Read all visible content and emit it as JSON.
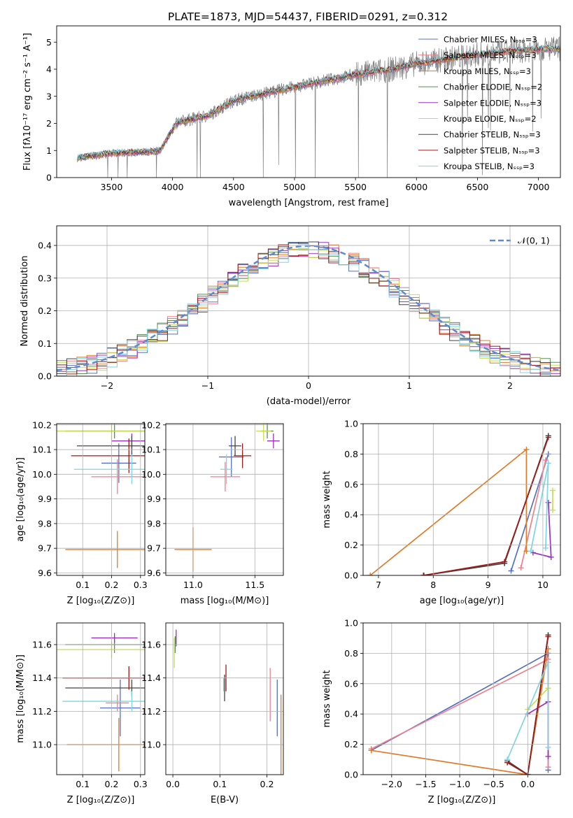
{
  "title": "PLATE=1873, MJD=54437, FIBERID=0291, z=0.312",
  "model_colors": [
    "#5470c6",
    "#f07e8e",
    "#e07b2a",
    "#5b8c5a",
    "#9b30c0",
    "#c8dc54",
    "#444444",
    "#a01818",
    "#7fd6e0"
  ],
  "chart_data": [
    {
      "id": "spectrum",
      "type": "line",
      "xlabel": "wavelength [Angstrom, rest frame]",
      "ylabel": "Flux [fλ10⁻¹⁷ erg cm⁻² s⁻¹ A⁻¹]",
      "xlim": [
        3050,
        7180
      ],
      "ylim": [
        0,
        5.6
      ],
      "xticks": [
        "3500",
        "4000",
        "4500",
        "5000",
        "5500",
        "6000",
        "6500",
        "7000"
      ],
      "yticks": [
        "0",
        "1",
        "2",
        "3",
        "4",
        "5"
      ],
      "legend_position": "upper-right",
      "series": [
        {
          "name": "Chabrier MILES, Nₛₛₚ=3"
        },
        {
          "name": "Salpeter MILES, Nₛₛₚ=3"
        },
        {
          "name": "Kroupa MILES, Nₛₛₚ=3"
        },
        {
          "name": "Chabrier ELODIE, Nₛₛₚ=2"
        },
        {
          "name": "Salpeter ELODIE, Nₛₛₚ=3"
        },
        {
          "name": "Kroupa ELODIE, Nₛₛₚ=2"
        },
        {
          "name": "Chabrier STELIB, Nₛₛₚ=3"
        },
        {
          "name": "Salpeter STELIB, Nₛₛₚ=3"
        },
        {
          "name": "Kroupa STELIB, Nₛₛₚ=3"
        }
      ],
      "continuum": {
        "x": [
          3220,
          3500,
          3800,
          3900,
          4000,
          4050,
          4300,
          4500,
          4700,
          5000,
          5500,
          5800,
          6000,
          6500,
          7000
        ],
        "y": [
          0.72,
          0.9,
          0.95,
          1.0,
          1.8,
          2.05,
          2.3,
          2.85,
          3.05,
          3.35,
          3.8,
          4.0,
          4.2,
          4.55,
          4.75
        ]
      },
      "data_start": 3220,
      "data_end": 7180,
      "grid": false
    },
    {
      "id": "residuals",
      "type": "histogram",
      "xlabel": "(data-model)/error",
      "ylabel": "Normed distribution",
      "xlim": [
        -2.5,
        2.5
      ],
      "ylim": [
        0,
        0.46
      ],
      "xticks": [
        "−2",
        "−1",
        "0",
        "1",
        "2"
      ],
      "yticks": [
        "0.0",
        "0.1",
        "0.2",
        "0.3",
        "0.4"
      ],
      "reference_curve": "𝒩(0, 1)",
      "legend_position": "upper-right",
      "grid": true
    },
    {
      "id": "age-vs-Z",
      "type": "scatter",
      "xlabel": "Z [log₁₀(Z/Z⊙)]",
      "ylabel": "age  [log₁₀(age/yr)]",
      "xlim": [
        0.01,
        0.315
      ],
      "ylim": [
        9.59,
        10.205
      ],
      "xticks": [
        "0.1",
        "0.2",
        "0.3"
      ],
      "yticks": [
        "9.6",
        "9.7",
        "9.8",
        "9.9",
        "10.0",
        "10.1",
        "10.2"
      ],
      "points": [
        {
          "c": 0,
          "x": 0.225,
          "xerr": 0.06,
          "y": 10.045,
          "yerr": 0.08
        },
        {
          "c": 1,
          "x": 0.22,
          "xerr": 0.09,
          "y": 9.99,
          "yerr": 0.07
        },
        {
          "c": 2,
          "x": 0.22,
          "xerr": 0.18,
          "y": 9.695,
          "yerr": 0.075
        },
        {
          "c": 3,
          "x": 0.21,
          "xerr": 0.17,
          "y": 10.175,
          "yerr": 0.03
        },
        {
          "c": 4,
          "x": 0.27,
          "xerr": 0.07,
          "y": 10.135,
          "yerr": 0.03
        },
        {
          "c": 5,
          "x": 0.2,
          "xerr": 0.25,
          "y": 10.175,
          "yerr": 0.04
        },
        {
          "c": 6,
          "x": 0.27,
          "xerr": 0.19,
          "y": 10.115,
          "yerr": 0.04
        },
        {
          "c": 7,
          "x": 0.26,
          "xerr": 0.2,
          "y": 10.075,
          "yerr": 0.07
        },
        {
          "c": 8,
          "x": 0.27,
          "xerr": 0.2,
          "y": 10.02,
          "yerr": 0.06
        }
      ]
    },
    {
      "id": "age-vs-mass",
      "type": "scatter",
      "xlabel": "mass [log₁₀(M/M⊙)]",
      "ylabel": "",
      "xlim": [
        10.78,
        11.73
      ],
      "ylim": [
        9.59,
        10.205
      ],
      "xticks": [
        "11.0",
        "11.5"
      ],
      "yticks": [
        "9.6",
        "9.7",
        "9.8",
        "9.9",
        "10.0",
        "10.1",
        "10.2"
      ],
      "points": [
        {
          "c": 0,
          "x": 11.31,
          "xerr": 0.1,
          "y": 10.07,
          "yerr": 0.08
        },
        {
          "c": 1,
          "x": 11.26,
          "xerr": 0.12,
          "y": 9.99,
          "yerr": 0.06
        },
        {
          "c": 2,
          "x": 11.0,
          "xerr": 0.15,
          "y": 9.695,
          "yerr": 0.09
        },
        {
          "c": 3,
          "x": 11.6,
          "xerr": 0.05,
          "y": 10.175,
          "yerr": 0.03
        },
        {
          "c": 4,
          "x": 11.65,
          "xerr": 0.05,
          "y": 10.135,
          "yerr": 0.03
        },
        {
          "c": 5,
          "x": 11.57,
          "xerr": 0.06,
          "y": 10.175,
          "yerr": 0.04
        },
        {
          "c": 6,
          "x": 11.34,
          "xerr": 0.05,
          "y": 10.115,
          "yerr": 0.04
        },
        {
          "c": 7,
          "x": 11.4,
          "xerr": 0.07,
          "y": 10.075,
          "yerr": 0.05
        },
        {
          "c": 8,
          "x": 11.27,
          "xerr": 0.05,
          "y": 10.02,
          "yerr": 0.06
        }
      ]
    },
    {
      "id": "weight-vs-age",
      "type": "line",
      "xlabel": "age  [log₁₀(age/yr)]",
      "ylabel": "mass weight",
      "xlim": [
        6.72,
        10.32
      ],
      "ylim": [
        0,
        1
      ],
      "xticks": [
        "7",
        "8",
        "9",
        "10"
      ],
      "yticks": [
        "0.0",
        "0.2",
        "0.4",
        "0.6",
        "0.8",
        "1.0"
      ],
      "series": [
        {
          "c": 0,
          "x": [
            9.42,
            10.1
          ],
          "y": [
            0.03,
            0.8
          ]
        },
        {
          "c": 1,
          "x": [
            9.6,
            10.05
          ],
          "y": [
            0.05,
            0.76
          ]
        },
        {
          "c": 2,
          "x": [
            6.85,
            9.7,
            9.7
          ],
          "y": [
            0.0,
            0.83,
            0.16
          ]
        },
        {
          "c": 3,
          "x": [
            9.3,
            10.1
          ],
          "y": [
            0.08,
            0.92
          ]
        },
        {
          "c": 4,
          "x": [
            9.82,
            10.15,
            10.1
          ],
          "y": [
            0.15,
            0.12,
            0.48
          ]
        },
        {
          "c": 5,
          "x": [
            10.18,
            10.18
          ],
          "y": [
            0.43,
            0.56
          ]
        },
        {
          "c": 6,
          "x": [
            7.83,
            9.3,
            10.1
          ],
          "y": [
            0.0,
            0.08,
            0.92
          ]
        },
        {
          "c": 7,
          "x": [
            7.82,
            9.3,
            10.1
          ],
          "y": [
            0.0,
            0.09,
            0.91
          ]
        },
        {
          "c": 8,
          "x": [
            9.78,
            10.1,
            10.05
          ],
          "y": [
            0.16,
            0.74,
            0.18
          ]
        }
      ]
    },
    {
      "id": "mass-vs-Z",
      "type": "scatter",
      "xlabel": "Z [log₁₀(Z/Z⊙)]",
      "ylabel": "mass [log₁₀(M/M⊙)]",
      "xlim": [
        0.01,
        0.315
      ],
      "ylim": [
        10.82,
        11.73
      ],
      "xticks": [
        "0.1",
        "0.2",
        "0.3"
      ],
      "yticks": [
        "11.0",
        "11.2",
        "11.4",
        "11.6"
      ],
      "points": [
        {
          "c": 0,
          "x": 0.23,
          "xerr": 0.07,
          "y": 11.22,
          "yerr": 0.17
        },
        {
          "c": 1,
          "x": 0.22,
          "xerr": 0.04,
          "y": 11.25,
          "yerr": 0.05
        },
        {
          "c": 2,
          "x": 0.225,
          "xerr": 0.18,
          "y": 11.0,
          "yerr": 0.16
        },
        {
          "c": 3,
          "x": 0.21,
          "xerr": 0.17,
          "y": 11.6,
          "yerr": 0.05
        },
        {
          "c": 4,
          "x": 0.21,
          "xerr": 0.08,
          "y": 11.64,
          "yerr": 0.03
        },
        {
          "c": 5,
          "x": 0.2,
          "xerr": 0.25,
          "y": 11.57,
          "yerr": 0.05
        },
        {
          "c": 6,
          "x": 0.27,
          "xerr": 0.23,
          "y": 11.34,
          "yerr": 0.05
        },
        {
          "c": 7,
          "x": 0.26,
          "xerr": 0.23,
          "y": 11.4,
          "yerr": 0.07
        },
        {
          "c": 8,
          "x": 0.27,
          "xerr": 0.24,
          "y": 11.26,
          "yerr": 0.06
        }
      ]
    },
    {
      "id": "mass-vs-EBV",
      "type": "scatter",
      "xlabel": "E(B-V)",
      "ylabel": "",
      "xlim": [
        -0.015,
        0.235
      ],
      "ylim": [
        10.82,
        11.73
      ],
      "xticks": [
        "0.0",
        "0.1",
        "0.2"
      ],
      "yticks": [
        "11.0",
        "11.2",
        "11.4",
        "11.6"
      ],
      "points": [
        {
          "c": 0,
          "x": 0.222,
          "xerr": 0,
          "y": 11.22,
          "yerr": 0.17
        },
        {
          "c": 1,
          "x": 0.207,
          "xerr": 0,
          "y": 11.3,
          "yerr": 0.16
        },
        {
          "c": 2,
          "x": 0.23,
          "xerr": 0,
          "y": 11.0,
          "yerr": 0.3
        },
        {
          "c": 3,
          "x": 0.005,
          "xerr": 0,
          "y": 11.6,
          "yerr": 0.05
        },
        {
          "c": 4,
          "x": 0.007,
          "xerr": 0,
          "y": 11.64,
          "yerr": 0.05
        },
        {
          "c": 5,
          "x": 0.003,
          "xerr": 0,
          "y": 11.55,
          "yerr": 0.09
        },
        {
          "c": 6,
          "x": 0.11,
          "xerr": 0,
          "y": 11.34,
          "yerr": 0.08
        },
        {
          "c": 7,
          "x": 0.113,
          "xerr": 0,
          "y": 11.4,
          "yerr": 0.08
        },
        {
          "c": 8,
          "x": 0.108,
          "xerr": 0,
          "y": 11.36,
          "yerr": 0.04
        }
      ]
    },
    {
      "id": "weight-vs-Z",
      "type": "line",
      "xlabel": "Z [log₁₀(Z/Z⊙)]",
      "ylabel": "mass weight",
      "xlim": [
        -2.42,
        0.48
      ],
      "ylim": [
        0,
        1
      ],
      "xticks": [
        "−2.0",
        "−1.5",
        "−1.0",
        "−0.5",
        "0.0"
      ],
      "yticks": [
        "0.0",
        "0.2",
        "0.4",
        "0.6",
        "0.8",
        "1.0"
      ],
      "series": [
        {
          "c": 0,
          "x": [
            -2.3,
            0.3,
            0.3
          ],
          "y": [
            0.16,
            0.8,
            0.03
          ]
        },
        {
          "c": 1,
          "x": [
            -2.3,
            0.3,
            0.3
          ],
          "y": [
            0.17,
            0.76,
            0.05
          ]
        },
        {
          "c": 2,
          "x": [
            -2.3,
            0.0,
            0.3
          ],
          "y": [
            0.16,
            0.0,
            0.83
          ]
        },
        {
          "c": 3,
          "x": [
            -0.3,
            0.0,
            0.3
          ],
          "y": [
            0.08,
            0.0,
            0.92
          ]
        },
        {
          "c": 4,
          "x": [
            0.0,
            0.3,
            0.3
          ],
          "y": [
            0.4,
            0.48,
            0.12
          ]
        },
        {
          "c": 5,
          "x": [
            0.0,
            0.3
          ],
          "y": [
            0.43,
            0.57
          ]
        },
        {
          "c": 6,
          "x": [
            -0.3,
            0.0,
            0.3
          ],
          "y": [
            0.09,
            0.0,
            0.92
          ]
        },
        {
          "c": 7,
          "x": [
            -0.3,
            0.0,
            0.3
          ],
          "y": [
            0.08,
            0.0,
            0.91
          ]
        },
        {
          "c": 8,
          "x": [
            -0.3,
            0.3,
            0.3
          ],
          "y": [
            0.1,
            0.74,
            0.18
          ]
        }
      ]
    }
  ]
}
